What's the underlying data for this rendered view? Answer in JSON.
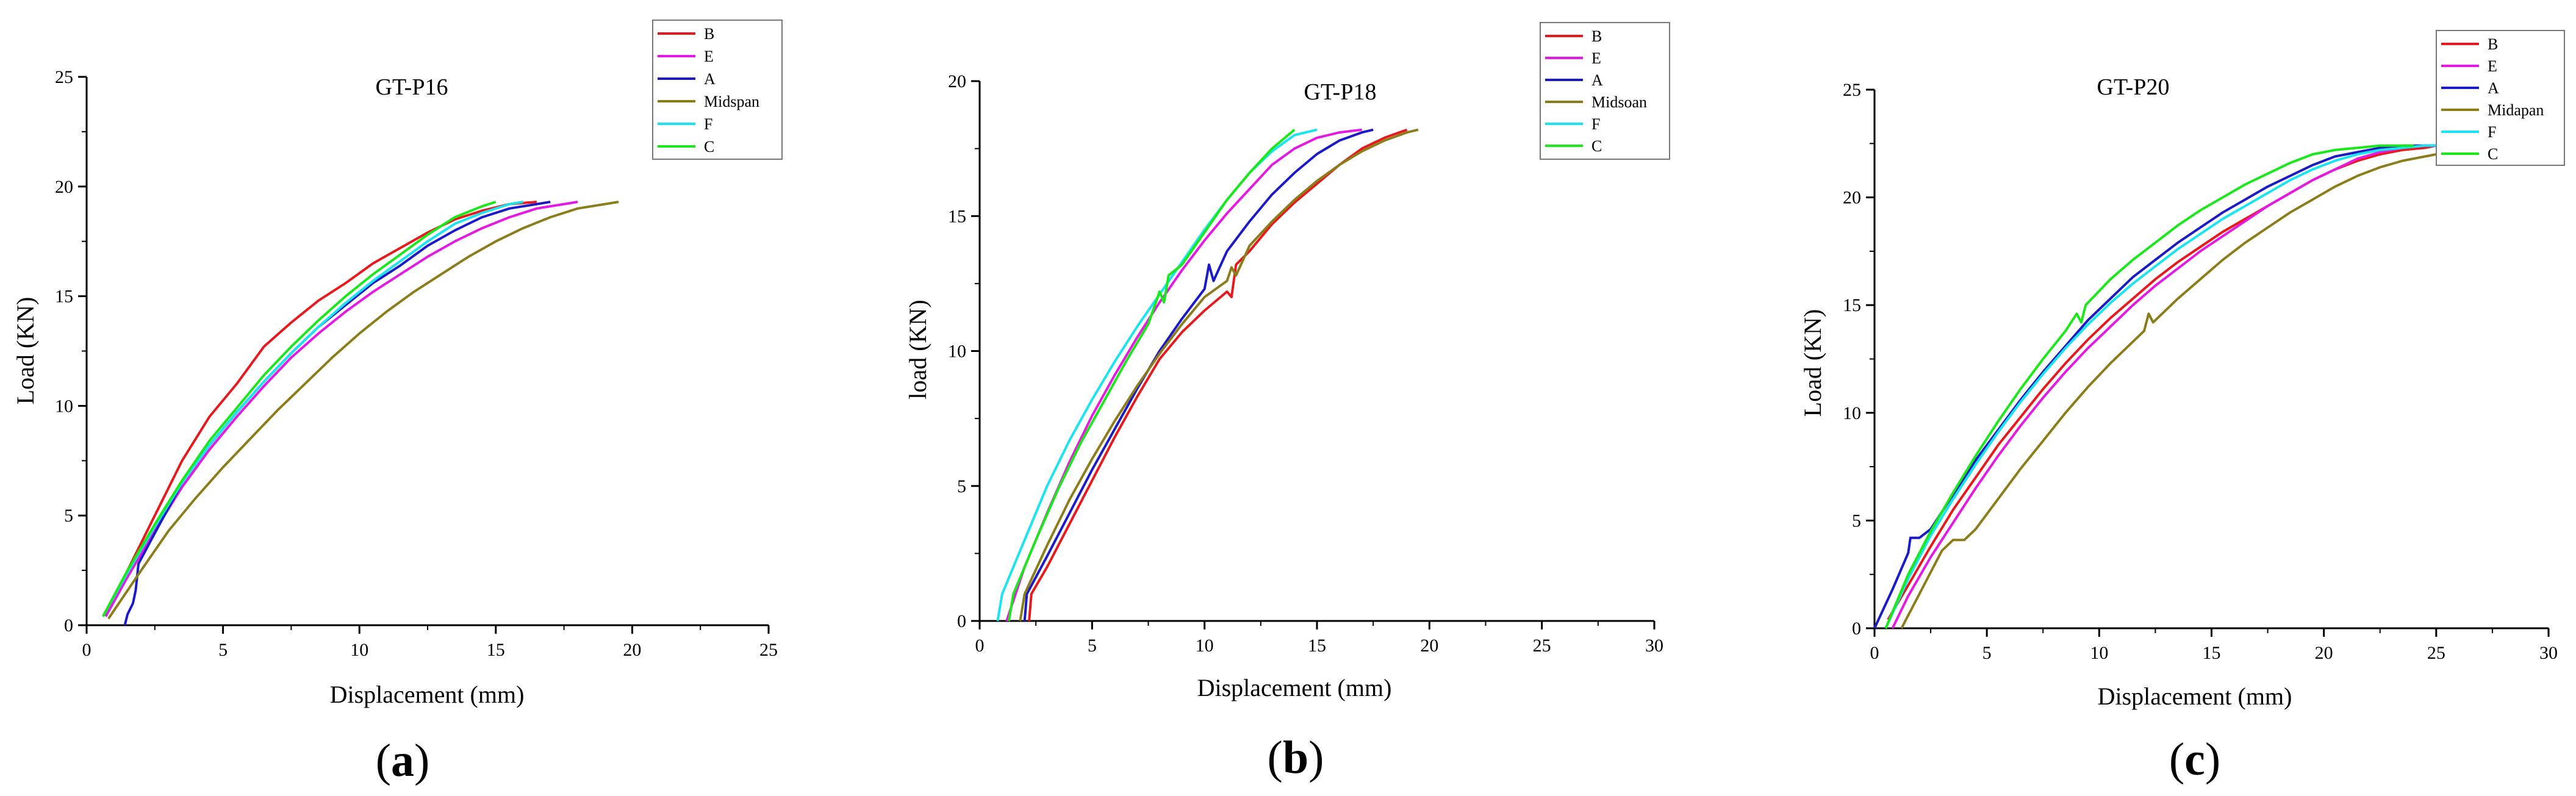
{
  "chart_data": [
    {
      "type": "line",
      "panel_label": "a",
      "title": "GT-P16",
      "xlabel": "Displacement (mm)",
      "ylabel": "Load (KN)",
      "xlim": [
        0,
        25
      ],
      "ylim": [
        0,
        25
      ],
      "xticks": [
        0,
        5,
        10,
        15,
        20,
        25
      ],
      "yticks": [
        0,
        5,
        10,
        15,
        20,
        25
      ],
      "grid": false,
      "legend_position": "top-right",
      "series": [
        {
          "name": "B",
          "color": "#e8191c",
          "x": [
            0.7,
            1.5,
            2.5,
            3.5,
            4.5,
            5.5,
            6.5,
            7.5,
            8.5,
            9.5,
            10.5,
            11.5,
            12.5,
            13.5,
            14.5,
            15.5,
            16.5
          ],
          "y": [
            0.4,
            2.5,
            5.0,
            7.5,
            9.5,
            11.0,
            12.7,
            13.8,
            14.8,
            15.6,
            16.5,
            17.2,
            17.9,
            18.5,
            18.9,
            19.2,
            19.3
          ]
        },
        {
          "name": "E",
          "color": "#e41ae4",
          "x": [
            0.7,
            1.5,
            2.5,
            3.5,
            4.5,
            5.5,
            6.5,
            7.5,
            8.5,
            9.5,
            10.5,
            11.5,
            12.5,
            13.5,
            14.5,
            15.5,
            16.5,
            17.5,
            18.0
          ],
          "y": [
            0.4,
            2.2,
            4.3,
            6.3,
            8.0,
            9.5,
            10.9,
            12.2,
            13.3,
            14.3,
            15.2,
            16.0,
            16.8,
            17.5,
            18.1,
            18.6,
            19.0,
            19.2,
            19.3
          ]
        },
        {
          "name": "A",
          "color": "#1a1ac8",
          "x": [
            1.4,
            1.5,
            1.7,
            1.8,
            1.9,
            2.5,
            3.5,
            4.5,
            5.5,
            6.5,
            7.5,
            8.5,
            9.5,
            10.5,
            11.5,
            12.5,
            13.5,
            14.5,
            15.5,
            16.5,
            17.0
          ],
          "y": [
            0.0,
            0.5,
            1.0,
            1.6,
            2.8,
            4.2,
            6.5,
            8.2,
            9.7,
            11.1,
            12.4,
            13.6,
            14.6,
            15.6,
            16.4,
            17.3,
            18.0,
            18.6,
            19.0,
            19.2,
            19.3
          ]
        },
        {
          "name": "Midspan",
          "color": "#8b7d1a",
          "x": [
            0.8,
            2.0,
            3.0,
            4.0,
            5.0,
            6.0,
            7.0,
            8.0,
            9.0,
            10.0,
            11.0,
            12.0,
            13.0,
            14.0,
            15.0,
            16.0,
            17.0,
            18.0,
            19.0,
            19.5
          ],
          "y": [
            0.3,
            2.5,
            4.3,
            5.8,
            7.2,
            8.5,
            9.8,
            11.0,
            12.2,
            13.3,
            14.3,
            15.2,
            16.0,
            16.8,
            17.5,
            18.1,
            18.6,
            19.0,
            19.2,
            19.3
          ]
        },
        {
          "name": "F",
          "color": "#1ae4f0",
          "x": [
            0.6,
            1.5,
            2.5,
            3.5,
            4.5,
            5.5,
            6.5,
            7.5,
            8.5,
            9.5,
            10.5,
            11.5,
            12.5,
            13.5,
            14.5,
            15.5,
            16.0
          ],
          "y": [
            0.4,
            2.4,
            4.5,
            6.5,
            8.2,
            9.7,
            11.1,
            12.4,
            13.6,
            14.7,
            15.7,
            16.6,
            17.5,
            18.3,
            18.8,
            19.2,
            19.3
          ]
        },
        {
          "name": "C",
          "color": "#1ae81a",
          "x": [
            0.6,
            1.5,
            2.5,
            3.5,
            4.5,
            5.5,
            6.5,
            7.5,
            8.5,
            9.5,
            10.5,
            11.5,
            12.5,
            13.5,
            14.5,
            15.0
          ],
          "y": [
            0.4,
            2.5,
            4.6,
            6.6,
            8.4,
            9.9,
            11.4,
            12.7,
            13.9,
            15.0,
            16.0,
            16.9,
            17.8,
            18.6,
            19.1,
            19.3
          ]
        }
      ]
    },
    {
      "type": "line",
      "panel_label": "b",
      "title": "GT-P18",
      "xlabel": "Displacement (mm)",
      "ylabel": "load (KN)",
      "xlim": [
        0,
        30
      ],
      "ylim": [
        0,
        20
      ],
      "xticks": [
        0,
        5,
        10,
        15,
        20,
        25,
        30
      ],
      "yticks": [
        0,
        5,
        10,
        15,
        20
      ],
      "grid": false,
      "legend_position": "top-right",
      "series": [
        {
          "name": "B",
          "color": "#e8191c",
          "x": [
            2.2,
            2.3,
            3.0,
            4.0,
            5.0,
            6.0,
            7.0,
            8.0,
            9.0,
            10.0,
            11.0,
            11.2,
            11.4,
            12.0,
            13.0,
            14.0,
            15.0,
            16.0,
            17.0,
            18.0,
            19.0
          ],
          "y": [
            0.0,
            1.0,
            2.0,
            3.6,
            5.2,
            6.8,
            8.3,
            9.7,
            10.7,
            11.5,
            12.2,
            12.0,
            13.2,
            13.7,
            14.7,
            15.5,
            16.2,
            16.9,
            17.5,
            17.9,
            18.2
          ]
        },
        {
          "name": "E",
          "color": "#e41ae4",
          "x": [
            1.2,
            2.0,
            3.0,
            4.0,
            5.0,
            6.0,
            7.0,
            8.0,
            9.0,
            10.0,
            11.0,
            12.0,
            13.0,
            14.0,
            15.0,
            16.0,
            17.0
          ],
          "y": [
            0.0,
            2.0,
            4.0,
            5.9,
            7.6,
            9.1,
            10.5,
            11.8,
            13.0,
            14.1,
            15.1,
            16.0,
            16.9,
            17.5,
            17.9,
            18.1,
            18.2
          ]
        },
        {
          "name": "A",
          "color": "#1a1ac8",
          "x": [
            2.0,
            2.1,
            3.0,
            4.0,
            5.0,
            6.0,
            7.0,
            8.0,
            9.0,
            10.0,
            10.2,
            10.4,
            11.0,
            12.0,
            13.0,
            14.0,
            15.0,
            16.0,
            17.0,
            17.5
          ],
          "y": [
            0.0,
            1.0,
            2.4,
            4.0,
            5.6,
            7.1,
            8.6,
            10.0,
            11.2,
            12.3,
            13.2,
            12.6,
            13.7,
            14.8,
            15.8,
            16.6,
            17.3,
            17.8,
            18.1,
            18.2
          ]
        },
        {
          "name": "Midsoan",
          "color": "#8b7d1a",
          "x": [
            1.8,
            2.0,
            3.0,
            4.0,
            5.0,
            6.0,
            7.0,
            8.0,
            9.0,
            10.0,
            11.0,
            11.2,
            11.4,
            12.0,
            13.0,
            14.0,
            15.0,
            16.0,
            17.0,
            18.0,
            19.0,
            19.5
          ],
          "y": [
            0.0,
            1.0,
            2.8,
            4.5,
            6.0,
            7.4,
            8.7,
            9.9,
            11.0,
            12.0,
            12.6,
            13.1,
            12.8,
            13.9,
            14.8,
            15.6,
            16.3,
            16.9,
            17.4,
            17.8,
            18.1,
            18.2
          ]
        },
        {
          "name": "F",
          "color": "#1ae4f0",
          "x": [
            0.8,
            1.0,
            2.0,
            3.0,
            4.0,
            5.0,
            6.0,
            7.0,
            8.0,
            9.0,
            10.0,
            11.0,
            12.0,
            13.0,
            14.0,
            15.0
          ],
          "y": [
            0.0,
            1.0,
            3.0,
            5.0,
            6.7,
            8.2,
            9.6,
            10.9,
            12.1,
            13.3,
            14.5,
            15.6,
            16.6,
            17.4,
            18.0,
            18.2
          ]
        },
        {
          "name": "C",
          "color": "#1ae81a",
          "x": [
            1.3,
            1.5,
            2.5,
            3.5,
            4.5,
            5.5,
            6.5,
            7.5,
            8.0,
            8.2,
            8.4,
            9.0,
            10.0,
            11.0,
            12.0,
            13.0,
            14.0
          ],
          "y": [
            0.0,
            1.0,
            3.0,
            4.9,
            6.6,
            8.1,
            9.6,
            11.0,
            12.2,
            11.8,
            12.8,
            13.2,
            14.4,
            15.6,
            16.6,
            17.5,
            18.2
          ]
        }
      ]
    },
    {
      "type": "line",
      "panel_label": "c",
      "title": "GT-P20",
      "xlabel": "Displacement (mm)",
      "ylabel": "Load (KN)",
      "xlim": [
        0,
        30
      ],
      "ylim": [
        0,
        25
      ],
      "xticks": [
        0,
        5,
        10,
        15,
        20,
        25,
        30
      ],
      "yticks": [
        0,
        5,
        10,
        15,
        20,
        25
      ],
      "grid": false,
      "legend_position": "top-right",
      "series": [
        {
          "name": "B",
          "color": "#e8191c",
          "x": [
            0.6,
            1.5,
            2.5,
            3.5,
            4.5,
            5.5,
            6.5,
            7.5,
            8.5,
            9.5,
            10.5,
            11.5,
            12.5,
            13.5,
            14.5,
            15.5,
            16.5,
            17.5,
            18.5,
            19.5,
            20.5,
            21.5,
            22.5,
            23.5,
            24.5,
            25.0
          ],
          "y": [
            0.4,
            2.0,
            3.8,
            5.5,
            7.0,
            8.5,
            9.8,
            11.1,
            12.3,
            13.4,
            14.4,
            15.3,
            16.2,
            17.0,
            17.7,
            18.4,
            19.0,
            19.6,
            20.2,
            20.8,
            21.3,
            21.7,
            22.0,
            22.2,
            22.3,
            22.4
          ]
        },
        {
          "name": "E",
          "color": "#e41ae4",
          "x": [
            0.8,
            1.5,
            2.5,
            3.5,
            4.5,
            5.5,
            6.5,
            7.5,
            8.5,
            9.5,
            10.5,
            11.5,
            12.5,
            13.5,
            14.5,
            15.5,
            16.5,
            17.5,
            18.5,
            19.5,
            20.5,
            21.5,
            22.5,
            23.5,
            24.5,
            25.0
          ],
          "y": [
            0.0,
            1.5,
            3.3,
            4.9,
            6.5,
            8.0,
            9.4,
            10.7,
            11.9,
            13.0,
            14.0,
            15.0,
            15.9,
            16.7,
            17.5,
            18.2,
            18.9,
            19.6,
            20.2,
            20.8,
            21.3,
            21.8,
            22.1,
            22.3,
            22.4,
            22.4
          ]
        },
        {
          "name": "A",
          "color": "#1a1ac8",
          "x": [
            0.0,
            0.8,
            1.5,
            1.6,
            2.0,
            2.5,
            3.5,
            4.5,
            5.5,
            6.5,
            7.5,
            8.5,
            9.5,
            10.5,
            11.5,
            12.5,
            13.5,
            14.5,
            15.5,
            16.5,
            17.5,
            18.5,
            19.5,
            20.5,
            21.5,
            22.5,
            23.5,
            24.5,
            25.0
          ],
          "y": [
            0.0,
            1.8,
            3.5,
            4.2,
            4.2,
            4.6,
            6.2,
            7.8,
            9.2,
            10.6,
            11.9,
            13.1,
            14.3,
            15.3,
            16.3,
            17.1,
            17.9,
            18.6,
            19.3,
            19.9,
            20.5,
            21.0,
            21.5,
            21.9,
            22.1,
            22.3,
            22.4,
            22.4,
            22.4
          ]
        },
        {
          "name": "Midapan",
          "color": "#8b7d1a",
          "x": [
            1.2,
            2.0,
            3.0,
            3.5,
            4.0,
            4.5,
            5.5,
            6.5,
            7.5,
            8.5,
            9.5,
            10.5,
            11.5,
            12.0,
            12.2,
            12.4,
            13.5,
            14.5,
            15.5,
            16.5,
            17.5,
            18.5,
            19.5,
            20.5,
            21.5,
            22.5,
            23.5,
            24.5,
            25.0
          ],
          "y": [
            0.0,
            1.6,
            3.6,
            4.1,
            4.1,
            4.6,
            6.0,
            7.4,
            8.7,
            10.0,
            11.2,
            12.3,
            13.3,
            13.8,
            14.6,
            14.2,
            15.3,
            16.2,
            17.1,
            17.9,
            18.6,
            19.3,
            19.9,
            20.5,
            21.0,
            21.4,
            21.7,
            21.9,
            22.0
          ]
        },
        {
          "name": "F",
          "color": "#1ae4f0",
          "x": [
            0.5,
            1.5,
            2.5,
            3.5,
            4.5,
            5.5,
            6.5,
            7.5,
            8.5,
            9.5,
            10.5,
            11.5,
            12.5,
            13.5,
            14.5,
            15.5,
            16.5,
            17.5,
            18.5,
            19.5,
            20.5,
            21.5,
            22.5,
            23.5,
            24.5,
            25.0
          ],
          "y": [
            0.0,
            2.3,
            4.3,
            6.0,
            7.6,
            9.1,
            10.5,
            11.8,
            13.0,
            14.1,
            15.1,
            16.0,
            16.8,
            17.6,
            18.3,
            19.0,
            19.6,
            20.2,
            20.8,
            21.3,
            21.7,
            22.0,
            22.2,
            22.3,
            22.4,
            22.4
          ]
        },
        {
          "name": "C",
          "color": "#1ae81a",
          "x": [
            0.5,
            1.5,
            2.5,
            3.5,
            4.5,
            5.5,
            6.5,
            7.5,
            8.5,
            9.0,
            9.2,
            9.4,
            10.5,
            11.5,
            12.5,
            13.5,
            14.5,
            15.5,
            16.5,
            17.5,
            18.5,
            19.5,
            20.5,
            21.5,
            22.5,
            23.5,
            24.0
          ],
          "y": [
            0.0,
            2.5,
            4.5,
            6.3,
            8.0,
            9.6,
            11.1,
            12.5,
            13.8,
            14.6,
            14.2,
            15.0,
            16.2,
            17.1,
            17.9,
            18.7,
            19.4,
            20.0,
            20.6,
            21.1,
            21.6,
            22.0,
            22.2,
            22.3,
            22.4,
            22.4,
            22.4
          ]
        }
      ]
    }
  ]
}
